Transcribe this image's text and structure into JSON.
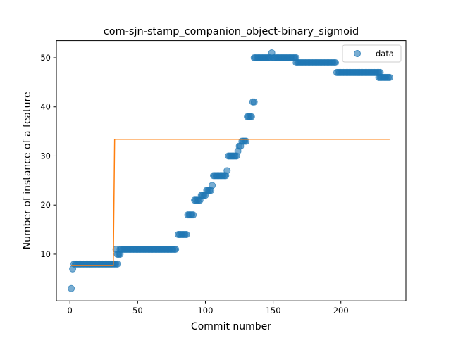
{
  "chart_data": {
    "type": "scatter",
    "title": "com-sjn-stamp_companion_object-binary_sigmoid",
    "xlabel": "Commit number",
    "ylabel": "Number of instance of a feature",
    "xlim": [
      -10,
      248
    ],
    "ylim": [
      0.5,
      53.5
    ],
    "xticks": [
      0,
      50,
      100,
      150,
      200
    ],
    "yticks": [
      10,
      20,
      30,
      40,
      50
    ],
    "grid": false,
    "legend": {
      "position": "top-right",
      "entries": [
        "data"
      ]
    },
    "colors": {
      "points": "#1f77b4",
      "fit": "#ff7f0e"
    },
    "series": [
      {
        "name": "data",
        "kind": "scatter",
        "segments": [
          {
            "x": [
              1,
              1
            ],
            "y": 3
          },
          {
            "x": [
              2,
              2
            ],
            "y": 7
          },
          {
            "x": [
              3,
              35
            ],
            "y": 8
          },
          {
            "x": [
              35,
              37
            ],
            "y": 10
          },
          {
            "x": [
              34,
              34
            ],
            "y": 11
          },
          {
            "x": [
              37,
              78
            ],
            "y": 11
          },
          {
            "x": [
              80,
              86
            ],
            "y": 14
          },
          {
            "x": [
              87,
              91
            ],
            "y": 18
          },
          {
            "x": [
              92,
              96
            ],
            "y": 21
          },
          {
            "x": [
              97,
              100
            ],
            "y": 22
          },
          {
            "x": [
              101,
              104
            ],
            "y": 23
          },
          {
            "x": [
              105,
              105
            ],
            "y": 24
          },
          {
            "x": [
              106,
              115
            ],
            "y": 26
          },
          {
            "x": [
              116,
              116
            ],
            "y": 27
          },
          {
            "x": [
              117,
              123
            ],
            "y": 30
          },
          {
            "x": [
              124,
              124
            ],
            "y": 31
          },
          {
            "x": [
              125,
              126
            ],
            "y": 32
          },
          {
            "x": [
              127,
              130
            ],
            "y": 33
          },
          {
            "x": [
              131,
              134
            ],
            "y": 38
          },
          {
            "x": [
              135,
              136
            ],
            "y": 41
          },
          {
            "x": [
              136,
              148
            ],
            "y": 50
          },
          {
            "x": [
              149,
              149
            ],
            "y": 51
          },
          {
            "x": [
              150,
              167
            ],
            "y": 50
          },
          {
            "x": [
              167,
              196
            ],
            "y": 49
          },
          {
            "x": [
              197,
              229
            ],
            "y": 47
          },
          {
            "x": [
              228,
              236
            ],
            "y": 46
          }
        ]
      },
      {
        "name": "",
        "kind": "line",
        "x": [
          1,
          32,
          33,
          236
        ],
        "y": [
          7.7,
          7.7,
          33.4,
          33.4
        ]
      }
    ]
  }
}
